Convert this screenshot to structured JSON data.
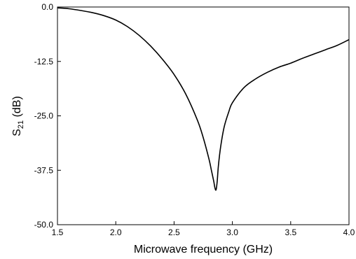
{
  "chart_data": {
    "type": "line",
    "title": "",
    "xlabel": "Microwave frequency (GHz)",
    "ylabel": "S21 (dB)",
    "ylabel_main": "S",
    "ylabel_sub": "21",
    "ylabel_unit": " (dB)",
    "xlim": [
      1.5,
      4.0
    ],
    "ylim": [
      -50.0,
      0.0
    ],
    "grid": false,
    "legend": "none",
    "xticks": [
      "1.5",
      "2.0",
      "2.5",
      "3.0",
      "3.5",
      "4.0"
    ],
    "yticks": [
      "0.0",
      "-12.5",
      "-25.0",
      "-37.5",
      "-50.0"
    ],
    "series": [
      {
        "color": "#000000",
        "x": [
          1.5,
          1.6,
          1.7,
          1.8,
          1.9,
          2.0,
          2.1,
          2.2,
          2.3,
          2.4,
          2.5,
          2.6,
          2.7,
          2.75,
          2.8,
          2.82,
          2.84,
          2.85,
          2.86,
          2.87,
          2.88,
          2.9,
          2.93,
          2.97,
          3.0,
          3.1,
          3.2,
          3.3,
          3.4,
          3.5,
          3.6,
          3.7,
          3.8,
          3.9,
          4.0
        ],
        "y": [
          -0.2,
          -0.4,
          -0.8,
          -1.3,
          -2.0,
          -3.0,
          -4.5,
          -6.5,
          -9.0,
          -12.0,
          -15.5,
          -20.0,
          -26.0,
          -30.0,
          -35.0,
          -37.5,
          -40.0,
          -41.5,
          -42.0,
          -40.0,
          -36.5,
          -32.0,
          -27.5,
          -24.0,
          -22.0,
          -18.5,
          -16.5,
          -15.0,
          -13.8,
          -12.9,
          -11.8,
          -10.8,
          -9.8,
          -8.8,
          -7.5
        ]
      }
    ]
  }
}
